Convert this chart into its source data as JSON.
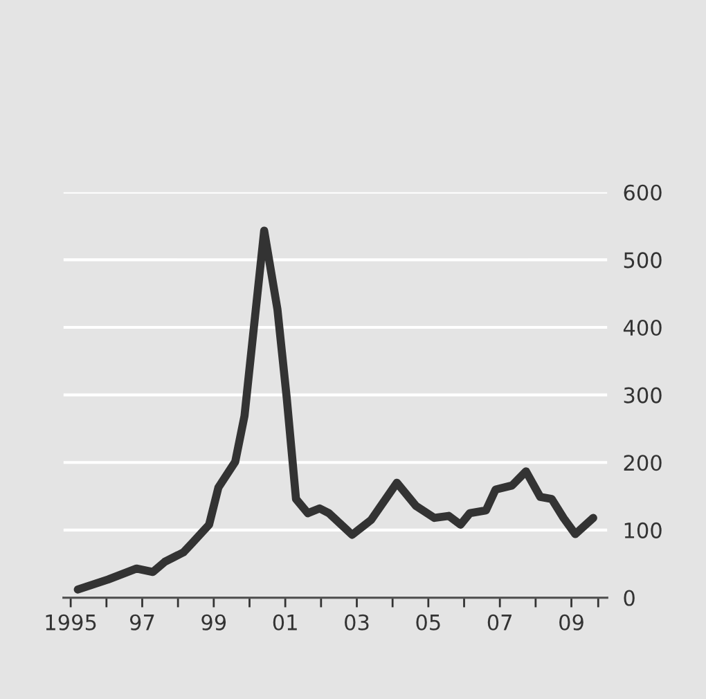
{
  "chart_data": {
    "type": "line",
    "x": [
      1995.2,
      1996.05,
      1996.84,
      1997.3,
      1997.63,
      1998.15,
      1998.4,
      1998.87,
      1999.13,
      1999.6,
      1999.86,
      2000.12,
      2000.41,
      2000.78,
      2001.04,
      2001.3,
      2001.63,
      2001.96,
      2002.22,
      2002.87,
      2003.4,
      2004.12,
      2004.65,
      2005.17,
      2005.57,
      2005.9,
      2006.16,
      2006.61,
      2006.88,
      2007.34,
      2007.73,
      2008.13,
      2008.45,
      2008.78,
      2009.11,
      2009.61
    ],
    "series": [
      {
        "color": "#333333",
        "values": [
          12,
          27,
          43,
          38,
          53,
          67,
          81,
          108,
          163,
          201,
          269,
          399,
          543,
          427,
          296,
          146,
          125,
          132,
          125,
          93,
          115,
          170,
          136,
          118,
          121,
          108,
          125,
          129,
          160,
          166,
          187,
          149,
          146,
          118,
          94,
          118
        ]
      }
    ],
    "xlim": [
      1994.8,
      2010
    ],
    "xticks": [
      {
        "value": 1995,
        "label": "1995"
      },
      {
        "value": 1996,
        "label": null
      },
      {
        "value": 1997,
        "label": "97"
      },
      {
        "value": 1998,
        "label": null
      },
      {
        "value": 1999,
        "label": "99"
      },
      {
        "value": 2000,
        "label": null
      },
      {
        "value": 2001,
        "label": "01"
      },
      {
        "value": 2002,
        "label": null
      },
      {
        "value": 2003,
        "label": "03"
      },
      {
        "value": 2004,
        "label": null
      },
      {
        "value": 2005,
        "label": "05"
      },
      {
        "value": 2006,
        "label": null
      },
      {
        "value": 2007,
        "label": "07"
      },
      {
        "value": 2008,
        "label": null
      },
      {
        "value": 2009,
        "label": "09"
      },
      {
        "value": 2009.75,
        "label": null
      }
    ],
    "ylim": [
      0,
      600
    ],
    "yticks": [
      0,
      100,
      200,
      300,
      400,
      500,
      600
    ],
    "grid": "y",
    "line_style": "solid",
    "marker": "none"
  }
}
